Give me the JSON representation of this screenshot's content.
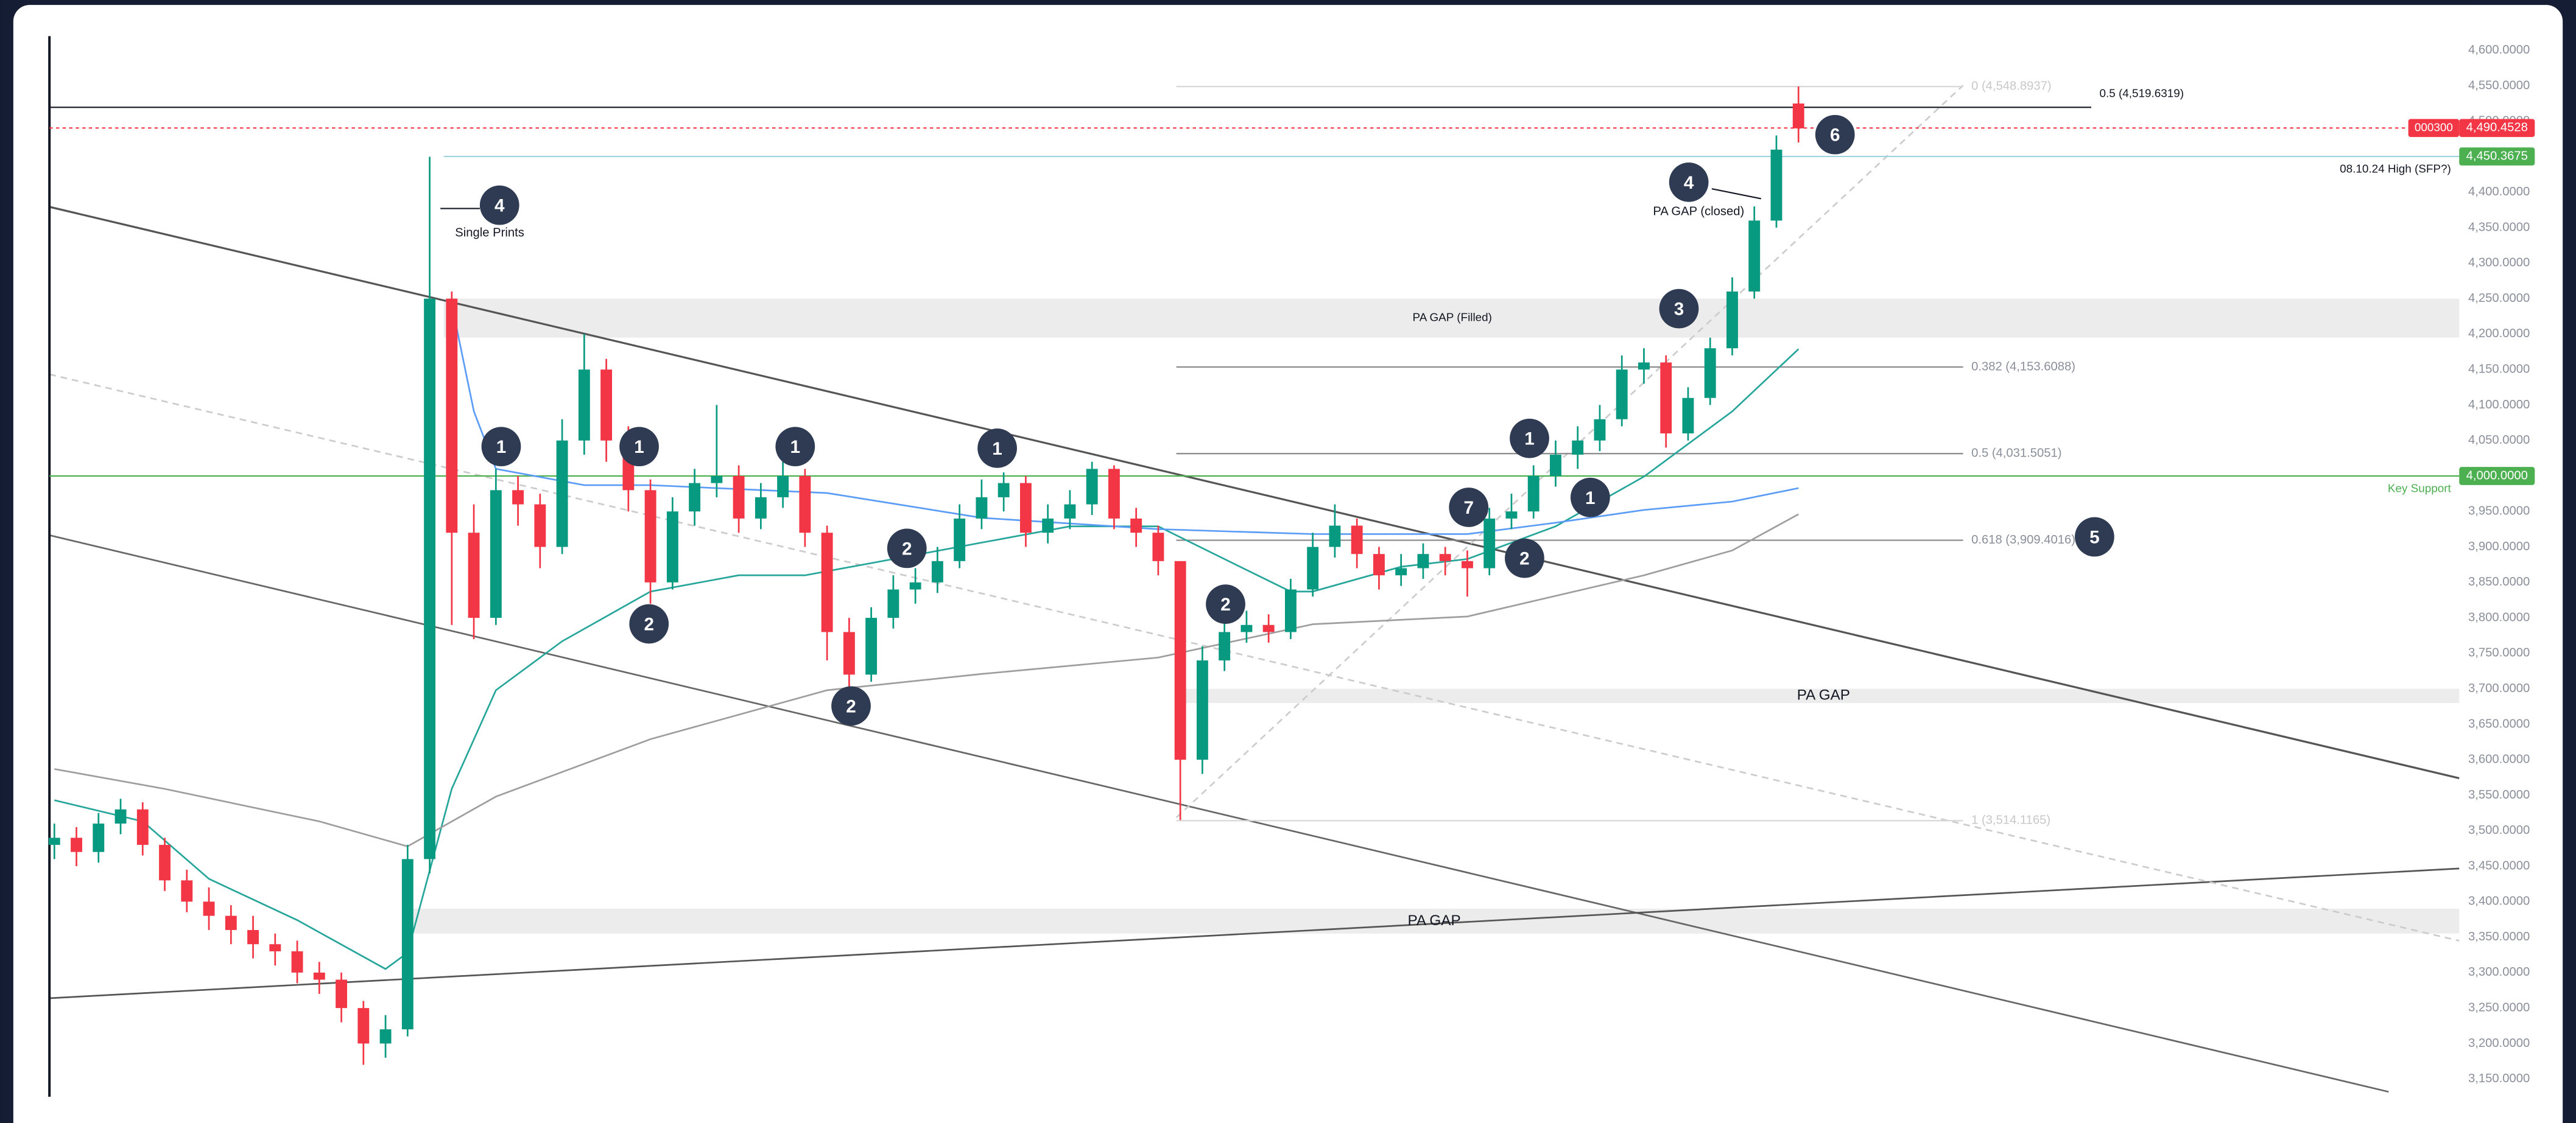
{
  "chart_data": {
    "type": "candlestick",
    "up_color": "#089981",
    "down_color": "#f23645",
    "ylim": [
      3125,
      4620
    ],
    "yticks": [
      {
        "value": 3150,
        "label": "3,150.0000"
      },
      {
        "value": 3200,
        "label": "3,200.0000"
      },
      {
        "value": 3250,
        "label": "3,250.0000"
      },
      {
        "value": 3300,
        "label": "3,300.0000"
      },
      {
        "value": 3350,
        "label": "3,350.0000"
      },
      {
        "value": 3400,
        "label": "3,400.0000"
      },
      {
        "value": 3450,
        "label": "3,450.0000"
      },
      {
        "value": 3500,
        "label": "3,500.0000"
      },
      {
        "value": 3550,
        "label": "3,550.0000"
      },
      {
        "value": 3600,
        "label": "3,600.0000"
      },
      {
        "value": 3650,
        "label": "3,650.0000"
      },
      {
        "value": 3700,
        "label": "3,700.0000"
      },
      {
        "value": 3750,
        "label": "3,750.0000"
      },
      {
        "value": 3800,
        "label": "3,800.0000"
      },
      {
        "value": 3850,
        "label": "3,850.0000"
      },
      {
        "value": 3900,
        "label": "3,900.0000"
      },
      {
        "value": 3950,
        "label": "3,950.0000"
      },
      {
        "value": 4000,
        "label": "4,000.0000"
      },
      {
        "value": 4050,
        "label": "4,050.0000"
      },
      {
        "value": 4100,
        "label": "4,100.0000"
      },
      {
        "value": 4150,
        "label": "4,150.0000"
      },
      {
        "value": 4200,
        "label": "4,200.0000"
      },
      {
        "value": 4250,
        "label": "4,250.0000"
      },
      {
        "value": 4300,
        "label": "4,300.0000"
      },
      {
        "value": 4350,
        "label": "4,350.0000"
      },
      {
        "value": 4400,
        "label": "4,400.0000"
      },
      {
        "value": 4450,
        "label": "4,450.0000"
      },
      {
        "value": 4500,
        "label": "4,500.0000"
      },
      {
        "value": 4550,
        "label": "4,550.0000"
      },
      {
        "value": 4600,
        "label": "4,600.0000"
      }
    ],
    "open": [
      3480,
      3490,
      3470,
      3510,
      3530,
      3480,
      3430,
      3400,
      3380,
      3360,
      3340,
      3330,
      3300,
      3290,
      3250,
      3200,
      3220,
      3460,
      4250,
      3920,
      3800,
      3980,
      3960,
      3900,
      4050,
      4150,
      4050,
      3980,
      3850,
      3950,
      3990,
      4000,
      3940,
      3970,
      4000,
      3920,
      3780,
      3720,
      3800,
      3840,
      3850,
      3880,
      3940,
      3970,
      3990,
      3920,
      3940,
      3960,
      4010,
      3940,
      3920,
      3880,
      3600,
      3740,
      3780,
      3790,
      3780,
      3840,
      3900,
      3930,
      3890,
      3860,
      3870,
      3890,
      3880,
      3870,
      3940,
      3950,
      4000,
      4030,
      4050,
      4080,
      4150,
      4160,
      4060,
      4110,
      4180,
      4260,
      4360,
      4525
    ],
    "high": [
      3510,
      3505,
      3525,
      3545,
      3540,
      3490,
      3445,
      3420,
      3395,
      3380,
      3355,
      3345,
      3315,
      3300,
      3260,
      3240,
      3480,
      4450,
      4260,
      3960,
      4010,
      4000,
      3975,
      4080,
      4200,
      4165,
      4070,
      3995,
      3970,
      4010,
      4100,
      4015,
      3990,
      4020,
      4010,
      3930,
      3800,
      3815,
      3860,
      3870,
      3900,
      3960,
      3995,
      4005,
      4000,
      3960,
      3980,
      4020,
      4015,
      3955,
      3930,
      3880,
      3760,
      3800,
      3810,
      3805,
      3855,
      3920,
      3960,
      3940,
      3900,
      3890,
      3905,
      3900,
      3895,
      3955,
      3975,
      4015,
      4050,
      4070,
      4100,
      4170,
      4180,
      4170,
      4125,
      4195,
      4280,
      4380,
      4480,
      4549
    ],
    "low": [
      3460,
      3450,
      3455,
      3495,
      3465,
      3415,
      3385,
      3360,
      3340,
      3320,
      3310,
      3285,
      3270,
      3230,
      3170,
      3180,
      3210,
      3440,
      3790,
      3770,
      3790,
      3930,
      3870,
      3890,
      4030,
      4020,
      3950,
      3820,
      3840,
      3930,
      3970,
      3920,
      3925,
      3955,
      3900,
      3740,
      3700,
      3710,
      3785,
      3820,
      3835,
      3870,
      3925,
      3950,
      3900,
      3905,
      3925,
      3945,
      3925,
      3900,
      3860,
      3515,
      3580,
      3725,
      3765,
      3765,
      3770,
      3830,
      3885,
      3870,
      3840,
      3845,
      3855,
      3860,
      3830,
      3860,
      3925,
      3940,
      3985,
      4010,
      4035,
      4070,
      4130,
      4040,
      4050,
      4100,
      4170,
      4250,
      4350,
      4470
    ],
    "close": [
      3490,
      3470,
      3510,
      3530,
      3480,
      3430,
      3400,
      3380,
      3360,
      3340,
      3330,
      3300,
      3290,
      3250,
      3200,
      3220,
      3460,
      4250,
      3920,
      3800,
      3980,
      3960,
      3900,
      4050,
      4150,
      4050,
      3980,
      3850,
      3950,
      3990,
      4000,
      3940,
      3970,
      4000,
      3920,
      3780,
      3720,
      3800,
      3840,
      3850,
      3880,
      3940,
      3970,
      3990,
      3920,
      3940,
      3960,
      4010,
      3940,
      3920,
      3880,
      3600,
      3740,
      3780,
      3790,
      3780,
      3840,
      3900,
      3930,
      3890,
      3860,
      3870,
      3890,
      3880,
      3870,
      3940,
      3950,
      4000,
      4030,
      4050,
      4080,
      4150,
      4160,
      4060,
      4110,
      4180,
      4260,
      4360,
      4460,
      4490
    ],
    "overlays": [
      {
        "color": "#26a69a",
        "x": [
          0,
          4,
          7,
          11,
          15,
          16,
          18,
          20,
          23,
          27,
          31,
          34,
          38,
          42,
          46,
          50,
          53,
          56,
          57,
          61,
          64,
          68,
          72,
          76,
          79
        ],
        "values": [
          3543,
          3513,
          3432,
          3374,
          3305,
          3328,
          3559,
          3698,
          3767,
          3837,
          3860,
          3860,
          3883,
          3906,
          3929,
          3929,
          3883,
          3837,
          3837,
          3872,
          3883,
          3929,
          3999,
          4091,
          4179
        ]
      },
      {
        "color": "#5b9cf6",
        "x": [
          18,
          19,
          20,
          24,
          27,
          35,
          42,
          50,
          57,
          64,
          68,
          72,
          76,
          79
        ],
        "values": [
          4242,
          4091,
          4010,
          3987,
          3987,
          3976,
          3941,
          3925,
          3918,
          3918,
          3934,
          3952,
          3964,
          3983
        ]
      },
      {
        "color": "#9e9e9e",
        "x": [
          0,
          5,
          12,
          16,
          20,
          27,
          35,
          42,
          50,
          57,
          64,
          72,
          76,
          79
        ],
        "values": [
          3587,
          3559,
          3513,
          3478,
          3548,
          3629,
          3698,
          3721,
          3744,
          3791,
          3802,
          3860,
          3895,
          3946
        ]
      }
    ],
    "levels": [
      {
        "value": 4519.6319,
        "label": "0.5 (4,519.6319)",
        "color": "#131722"
      },
      {
        "value": 4490.4528,
        "color": "#f23645"
      },
      {
        "value": 4450.3675,
        "label": "08.10.24 High (SFP?)",
        "color": "#9fd3e0"
      },
      {
        "value": 4000,
        "label": "Key Support",
        "color": "#4caf50"
      }
    ],
    "fib_levels": [
      {
        "value": 4548.8937,
        "label": "0 (4,548.8937)"
      },
      {
        "value": 4153.6088,
        "label": "0.382 (4,153.6088)"
      },
      {
        "value": 4031.5051,
        "label": "0.5 (4,031.5051)"
      },
      {
        "value": 3909.4016,
        "label": "0.618 (3,909.4016)"
      },
      {
        "value": 3514.1165,
        "label": "1 (3,514.1165)"
      }
    ],
    "price_tags": [
      {
        "value": 4490.4528,
        "label": "4,490.4528",
        "color": "#f23645"
      },
      {
        "value": 4450.3675,
        "label": "4,450.3675",
        "color": "#4caf50"
      },
      {
        "value": 4000,
        "label": "4,000.0000",
        "color": "#4caf50"
      }
    ],
    "countdown": "000300",
    "zones": [
      {
        "label": "PA GAP (Filled)",
        "from": 4195,
        "to": 4250
      },
      {
        "label": "PA GAP",
        "from": 3680,
        "to": 3700
      },
      {
        "label": "PA GAP",
        "from": 3355,
        "to": 3390
      }
    ],
    "annotations": [
      {
        "label": "1"
      },
      {
        "label": "1"
      },
      {
        "label": "1"
      },
      {
        "label": "1"
      },
      {
        "label": "1"
      },
      {
        "label": "1"
      },
      {
        "label": "2"
      },
      {
        "label": "2"
      },
      {
        "label": "2"
      },
      {
        "label": "2"
      },
      {
        "label": "2"
      },
      {
        "label": "7"
      },
      {
        "label": "3"
      },
      {
        "label": "4"
      },
      {
        "label": "4"
      },
      {
        "label": "6"
      },
      {
        "label": "5"
      }
    ],
    "notes": [
      "Single Prints",
      "PA GAP (closed)"
    ]
  }
}
